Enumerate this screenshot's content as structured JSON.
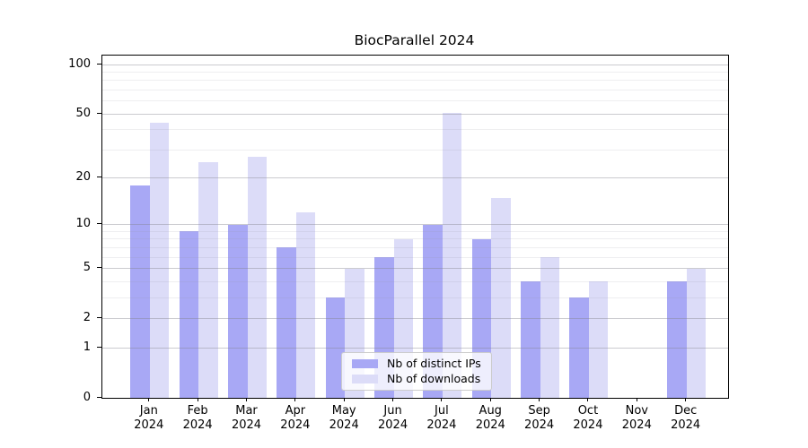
{
  "figure": {
    "title": "BiocParallel 2024"
  },
  "chart_data": {
    "type": "bar",
    "title": "BiocParallel 2024",
    "categories": [
      "Jan",
      "Feb",
      "Mar",
      "Apr",
      "May",
      "Jun",
      "Jul",
      "Aug",
      "Sep",
      "Oct",
      "Nov",
      "Dec"
    ],
    "category_second_line": "2024",
    "series": [
      {
        "name": "Nb of distinct IPs",
        "color": "#a8a8f5",
        "values": [
          18,
          9,
          10,
          7,
          3,
          6,
          10,
          8,
          4,
          3,
          0,
          4
        ]
      },
      {
        "name": "Nb of downloads",
        "color": "#dcdcf8",
        "values": [
          44,
          25,
          27,
          12,
          5,
          8,
          51,
          15,
          6,
          4,
          0,
          5
        ]
      }
    ],
    "y_axis": {
      "scale": "log1p",
      "ticks": [
        0,
        1,
        2,
        5,
        10,
        20,
        50,
        100
      ],
      "minor_gridlines": [
        3,
        4,
        6,
        7,
        8,
        9,
        30,
        40,
        60,
        70,
        80,
        90
      ],
      "range": [
        0,
        114
      ]
    },
    "legend": {
      "position": "lower-center"
    },
    "grid": "on"
  },
  "colors": {
    "background": "#ffffff",
    "bar_dark": "#a8a8f5",
    "bar_light": "#dcdcf8",
    "grid_major_rgba": "rgba(130,130,140,0.42)",
    "grid_minor_rgba": "rgba(150,150,160,0.16)",
    "spine": "#000000",
    "legend_border": "#cccccc",
    "text": "#000000"
  }
}
